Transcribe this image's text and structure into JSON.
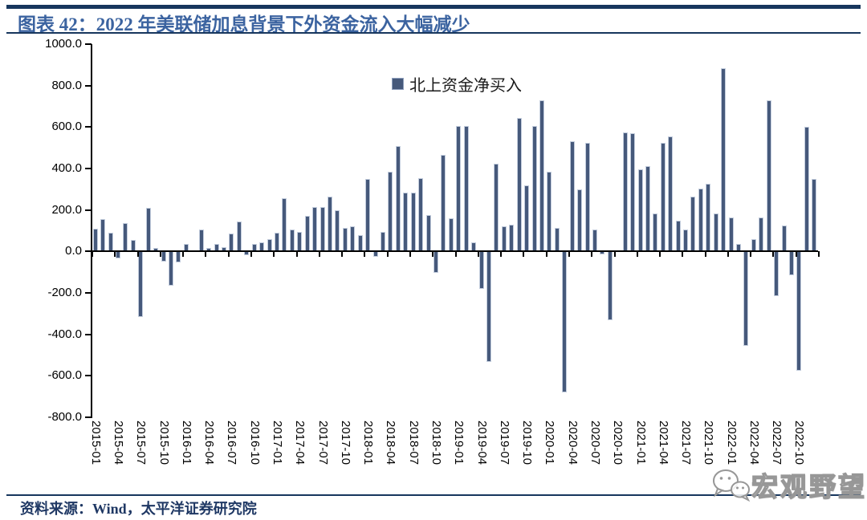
{
  "header": {
    "title": "图表 42：2022 年美联储加息背景下外资金流入大幅减少"
  },
  "legend": {
    "label": "北上资金净买入"
  },
  "footer": {
    "source": "资料来源：Wind，太平洋证券研究院",
    "watermark": "宏观野望"
  },
  "colors": {
    "bar": "#46597b",
    "bar_edge": "#c3cddd",
    "title": "#3b63a0",
    "rule": "#17365d",
    "source_text": "#1f3864",
    "axis": "#000000",
    "watermark": "#979797"
  },
  "chart_data": {
    "type": "bar",
    "title": "图表 42：2022 年美联储加息背景下外资金流入大幅减少",
    "series_name": "北上资金净买入",
    "unit_hint": "亿元",
    "ylim": [
      -800,
      1000
    ],
    "grid": false,
    "legend_position": "top-center",
    "y_tick_labels": [
      "1000.0",
      "800.0",
      "600.0",
      "400.0",
      "200.0",
      "0.0",
      "-200.0",
      "-400.0",
      "-600.0",
      "-800.0"
    ],
    "y_tick_values": [
      1000,
      800,
      600,
      400,
      200,
      0,
      -200,
      -400,
      -600,
      -800
    ],
    "x_tick_labels": [
      "2015-01",
      "2015-04",
      "2015-07",
      "2015-10",
      "2016-01",
      "2016-04",
      "2016-07",
      "2016-10",
      "2017-01",
      "2017-04",
      "2017-07",
      "2017-10",
      "2018-01",
      "2018-04",
      "2018-07",
      "2018-10",
      "2019-01",
      "2019-04",
      "2019-07",
      "2019-10",
      "2020-01",
      "2020-04",
      "2020-07",
      "2020-10",
      "2021-01",
      "2021-04",
      "2021-07",
      "2021-10",
      "2022-01",
      "2022-04",
      "2022-07",
      "2022-10"
    ],
    "x": [
      "2015-01",
      "2015-02",
      "2015-03",
      "2015-04",
      "2015-05",
      "2015-06",
      "2015-07",
      "2015-08",
      "2015-09",
      "2015-10",
      "2015-11",
      "2015-12",
      "2016-01",
      "2016-02",
      "2016-03",
      "2016-04",
      "2016-05",
      "2016-06",
      "2016-07",
      "2016-08",
      "2016-09",
      "2016-10",
      "2016-11",
      "2016-12",
      "2017-01",
      "2017-02",
      "2017-03",
      "2017-04",
      "2017-05",
      "2017-06",
      "2017-07",
      "2017-08",
      "2017-09",
      "2017-10",
      "2017-11",
      "2017-12",
      "2018-01",
      "2018-02",
      "2018-03",
      "2018-04",
      "2018-05",
      "2018-06",
      "2018-07",
      "2018-08",
      "2018-09",
      "2018-10",
      "2018-11",
      "2018-12",
      "2019-01",
      "2019-02",
      "2019-03",
      "2019-04",
      "2019-05",
      "2019-06",
      "2019-07",
      "2019-08",
      "2019-09",
      "2019-10",
      "2019-11",
      "2019-12",
      "2020-01",
      "2020-02",
      "2020-03",
      "2020-04",
      "2020-05",
      "2020-06",
      "2020-07",
      "2020-08",
      "2020-09",
      "2020-10",
      "2020-11",
      "2020-12",
      "2021-01",
      "2021-02",
      "2021-03",
      "2021-04",
      "2021-05",
      "2021-06",
      "2021-07",
      "2021-08",
      "2021-09",
      "2021-10",
      "2021-11",
      "2021-12",
      "2022-01",
      "2022-02",
      "2022-03",
      "2022-04",
      "2022-05",
      "2022-06",
      "2022-07",
      "2022-08",
      "2022-09",
      "2022-10",
      "2022-11",
      "2022-12"
    ],
    "values": [
      110,
      155,
      90,
      -35,
      135,
      55,
      -315,
      210,
      15,
      -50,
      -165,
      -55,
      35,
      0,
      105,
      15,
      35,
      20,
      85,
      145,
      -20,
      35,
      45,
      60,
      90,
      255,
      105,
      95,
      170,
      215,
      215,
      265,
      200,
      115,
      120,
      80,
      350,
      -25,
      95,
      385,
      510,
      285,
      285,
      355,
      175,
      -105,
      465,
      160,
      605,
      605,
      45,
      -180,
      -535,
      425,
      120,
      130,
      645,
      320,
      605,
      730,
      385,
      115,
      -680,
      530,
      300,
      525,
      105,
      -15,
      -330,
      0,
      575,
      570,
      395,
      410,
      185,
      525,
      555,
      150,
      105,
      265,
      305,
      325,
      185,
      885,
      165,
      35,
      -455,
      60,
      165,
      730,
      -215,
      125,
      -115,
      -575,
      600,
      350
    ]
  }
}
